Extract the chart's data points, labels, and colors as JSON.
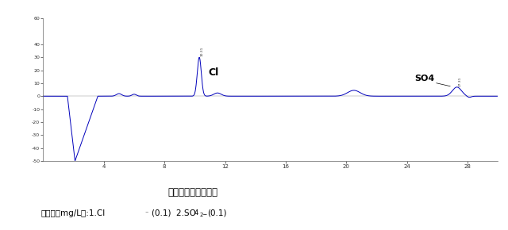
{
  "title": "混合标准溶液色谱图",
  "caption_prefix": "色谱峰（mg/L）:1.Cl",
  "caption_suffix": "(0.1) 2.SO",
  "xlim": [
    0,
    30
  ],
  "ylim": [
    -50,
    60
  ],
  "yticks": [
    60,
    40,
    30,
    20,
    10,
    0,
    -10,
    -20,
    -30,
    -40,
    -50
  ],
  "xticks": [
    4,
    8,
    12,
    16,
    20,
    24,
    28
  ],
  "line_color": "#0000bb",
  "bg_color": "#ffffff",
  "Cl_peak_x": 10.3,
  "Cl_peak_y": 30,
  "SO4_peak_x": 27.3,
  "SO4_peak_y": 7,
  "dip_start": 1.6,
  "dip_bottom": 2.1,
  "dip_recover": 3.6,
  "dip_min": -50
}
